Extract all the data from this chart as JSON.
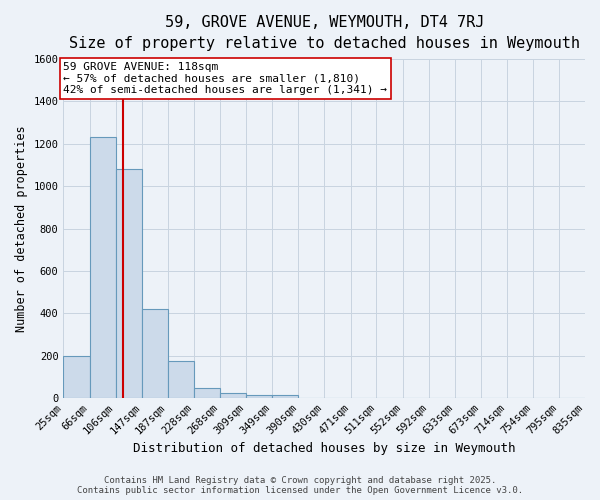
{
  "title1": "59, GROVE AVENUE, WEYMOUTH, DT4 7RJ",
  "title2": "Size of property relative to detached houses in Weymouth",
  "xlabel": "Distribution of detached houses by size in Weymouth",
  "ylabel": "Number of detached properties",
  "bin_edges": [
    25,
    66,
    106,
    147,
    187,
    228,
    268,
    309,
    349,
    390,
    430,
    471,
    511,
    552,
    592,
    633,
    673,
    714,
    754,
    795,
    835
  ],
  "bar_heights": [
    200,
    1230,
    1080,
    420,
    175,
    45,
    25,
    15,
    15,
    0,
    0,
    0,
    0,
    0,
    0,
    0,
    0,
    0,
    0,
    0
  ],
  "bar_color": "#ccdaea",
  "bar_edge_color": "#6699bb",
  "grid_color": "#c8d4e0",
  "background_color": "#edf2f8",
  "property_size": 118,
  "vline_color": "#cc0000",
  "annotation_line1": "59 GROVE AVENUE: 118sqm",
  "annotation_line2": "← 57% of detached houses are smaller (1,810)",
  "annotation_line3": "42% of semi-detached houses are larger (1,341) →",
  "annotation_box_color": "#ffffff",
  "annotation_box_edge": "#cc0000",
  "ylim": [
    0,
    1600
  ],
  "yticks": [
    0,
    200,
    400,
    600,
    800,
    1000,
    1200,
    1400,
    1600
  ],
  "footer_line1": "Contains HM Land Registry data © Crown copyright and database right 2025.",
  "footer_line2": "Contains public sector information licensed under the Open Government Licence v3.0.",
  "title_fontsize": 11,
  "subtitle_fontsize": 9.5,
  "tick_label_fontsize": 7.5,
  "ylabel_fontsize": 8.5,
  "xlabel_fontsize": 9,
  "annotation_fontsize": 8,
  "footer_fontsize": 6.5
}
